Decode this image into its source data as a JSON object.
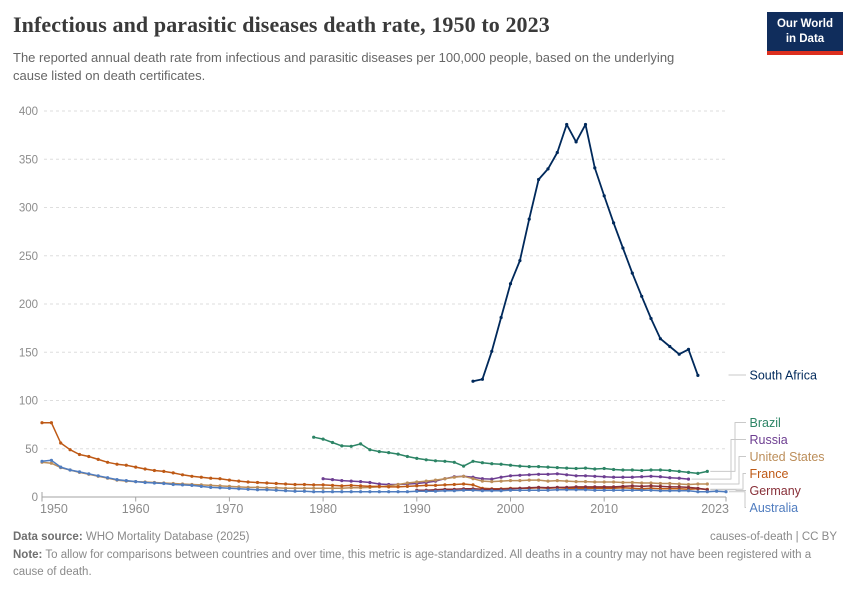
{
  "header": {
    "title": "Infectious and parasitic diseases death rate, 1950 to 2023",
    "subtitle": "The reported annual death rate from infectious and parasitic diseases per 100,000 people, based on the underlying cause listed on death certificates.",
    "logo": {
      "line1": "Our World",
      "line2": "in Data",
      "bg_color": "#102D5C",
      "accent_color": "#DC2F1E"
    }
  },
  "chart_data": {
    "type": "line",
    "title": "Infectious and parasitic diseases death rate, 1950 to 2023",
    "xlabel": "",
    "ylabel": "",
    "xlim": [
      1950,
      2023
    ],
    "ylim": [
      0,
      400
    ],
    "x_ticks": [
      1950,
      1960,
      1970,
      1980,
      1990,
      2000,
      2010,
      2023
    ],
    "y_ticks": [
      0,
      50,
      100,
      150,
      200,
      250,
      300,
      350,
      400
    ],
    "grid": "horizontal-dashed",
    "legend_position": "right-end-labels",
    "unit": "deaths per 100,000 people",
    "series": [
      {
        "name": "South Africa",
        "color": "#00295B",
        "start_year": 1996,
        "values": [
          120,
          122,
          151,
          186,
          221,
          245,
          288,
          329,
          340,
          357,
          386,
          368,
          386,
          341,
          312,
          284,
          258,
          232,
          208,
          185,
          164,
          156,
          148,
          153,
          126
        ]
      },
      {
        "name": "Brazil",
        "color": "#2C8465",
        "start_year": 1979,
        "values": [
          62,
          60,
          56.5,
          53,
          52.5,
          55,
          49,
          47,
          46,
          44.5,
          42,
          40,
          38.5,
          37.5,
          37,
          36,
          32,
          37,
          35.5,
          34.5,
          34,
          33,
          32,
          31.5,
          31.5,
          31,
          30.5,
          30,
          29.5,
          30,
          29,
          29.5,
          28.5,
          28,
          28,
          27.5,
          28,
          28,
          27.5,
          26.5,
          25.5,
          24.5,
          26.5
        ]
      },
      {
        "name": "Russia",
        "color": "#6D3E91",
        "start_year": 1980,
        "values": [
          19,
          18,
          17,
          16.5,
          16,
          15,
          13.5,
          13,
          13,
          13.5,
          14,
          15,
          16.5,
          19,
          21,
          21.5,
          20.5,
          19,
          18.5,
          20.5,
          22,
          22.5,
          23,
          23.5,
          23.5,
          24,
          23,
          22,
          22,
          21.5,
          21,
          20.5,
          20.5,
          20.5,
          21,
          21.5,
          21,
          20,
          19.5,
          18.5
        ]
      },
      {
        "name": "United States",
        "color": "#BC8E5A",
        "start_year": 1950,
        "values": [
          36,
          35,
          30.5,
          28,
          25.5,
          23.5,
          21.5,
          19.5,
          17.5,
          16.5,
          16,
          15.5,
          15,
          14.5,
          14,
          13.5,
          13,
          12.5,
          12,
          11.5,
          11,
          10.5,
          10,
          10,
          9.5,
          9.5,
          9,
          9,
          9,
          9,
          9,
          9,
          9,
          9.5,
          9.5,
          10,
          10.5,
          11.5,
          13,
          14.5,
          15.5,
          16.5,
          17.5,
          19,
          20.5,
          21.5,
          19,
          16.5,
          16,
          16.5,
          17,
          17,
          17.5,
          17.5,
          16.5,
          17,
          16.5,
          16,
          16,
          15.5,
          15.5,
          15.5,
          15,
          15,
          14.5,
          14.5,
          14,
          14,
          13.5,
          13,
          13.5,
          13.5
        ]
      },
      {
        "name": "France",
        "color": "#BE5915",
        "start_year": 1950,
        "values": [
          77,
          77,
          56,
          49,
          44,
          42,
          39,
          36,
          34,
          33,
          31,
          29,
          27.5,
          26.5,
          25,
          23,
          21.5,
          20.5,
          19.5,
          19,
          17.5,
          16.5,
          15.5,
          15,
          14.5,
          14,
          13.5,
          13,
          13,
          12.5,
          12.5,
          12,
          11.5,
          12,
          11.5,
          11,
          11,
          10.5,
          10.5,
          11,
          11.5,
          12,
          12,
          12.5,
          13,
          13.5,
          12.5,
          9,
          8.5,
          8.5,
          9,
          9,
          9,
          9.5,
          9,
          9.5,
          9,
          9,
          9,
          9,
          9,
          9,
          9.5,
          9,
          8.5,
          9,
          8.5,
          8.5,
          8.5,
          8,
          8.5,
          8
        ]
      },
      {
        "name": "Germany",
        "color": "#883039",
        "start_year": 1990,
        "values": [
          7,
          7,
          7.5,
          8,
          8,
          8.5,
          8.5,
          8,
          8,
          8,
          8.5,
          9,
          9.5,
          10,
          9.5,
          10,
          10,
          10.5,
          10.5,
          10.5,
          10.5,
          10.5,
          11,
          11.5,
          11,
          11.5,
          11,
          10.5,
          10.5,
          10,
          9,
          7.5
        ]
      },
      {
        "name": "Australia",
        "color": "#4F7CBF",
        "start_year": 1950,
        "values": [
          37,
          38,
          31,
          28,
          26,
          24,
          22,
          20,
          18,
          17,
          16,
          15,
          14.5,
          14,
          13,
          12.5,
          12,
          11,
          10,
          9.5,
          9,
          8.5,
          8,
          7.5,
          7.5,
          7,
          6.5,
          6,
          6,
          5.5,
          5.5,
          5.5,
          5.5,
          5.5,
          5.5,
          5.5,
          5.5,
          5.5,
          5.5,
          5.5,
          6,
          6,
          6,
          6.5,
          6.5,
          7,
          7,
          6.5,
          6.5,
          6.5,
          7,
          7,
          7,
          7,
          7,
          7.5,
          7.5,
          7.5,
          7.5,
          7,
          7,
          7,
          7,
          7,
          7,
          7,
          6.5,
          6.5,
          6.5,
          6.5,
          5.5,
          5.5,
          6,
          5.5
        ]
      }
    ]
  },
  "footer": {
    "source_label": "Data source:",
    "source_value": "WHO Mortality Database (2025)",
    "attribution": "causes-of-death | CC BY",
    "note_label": "Note:",
    "note_text": "To allow for comparisons between countries and over time, this metric is age-standardized. All deaths in a country may not have been registered with a cause of death."
  }
}
